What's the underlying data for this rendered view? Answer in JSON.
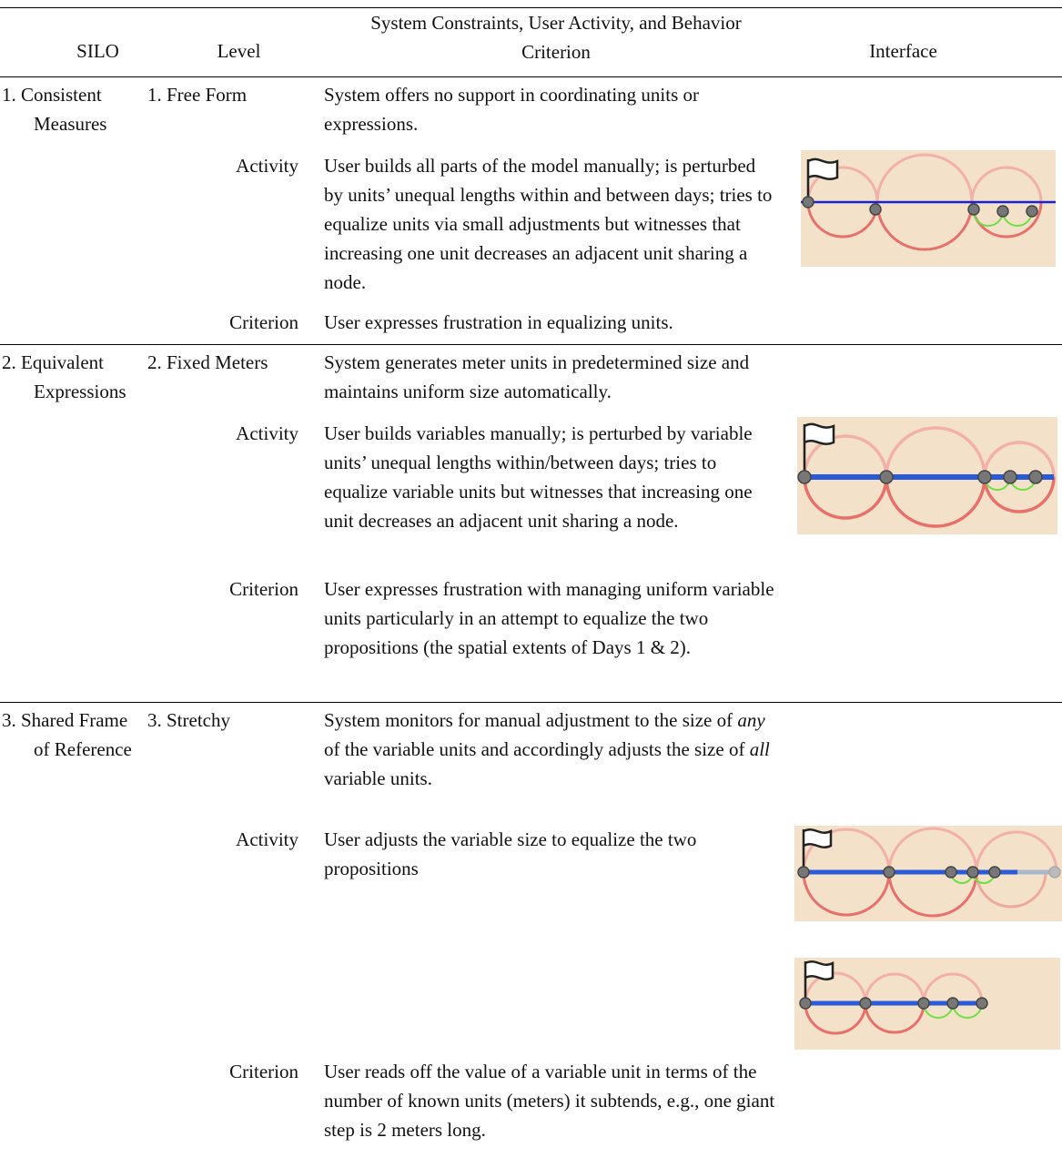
{
  "table": {
    "headers": [
      "SILO",
      "Level",
      "System Constraints, User Activity, and Behavior Criterion",
      "Interface"
    ],
    "rows": [
      {
        "silo": "1. Consistent Measures",
        "level": "1. Free Form",
        "system": "System offers no support in coordinating units or expressions.",
        "activity_label": "Activity",
        "activity": "User builds all parts of the model manually; is perturbed by units’ unequal lengths within and between days; tries to equalize units via small adjustments but witnesses that increasing one unit decreases an adjacent unit sharing a node.",
        "criterion_label": "Criterion",
        "criterion": "User expresses frustration in equalizing units."
      },
      {
        "silo": "2. Equivalent Expressions",
        "level": "2. Fixed Meters",
        "system": "System generates meter units in predetermined size and maintains uniform size automatically.",
        "activity_label": "Activity",
        "activity": "User builds variables manually; is perturbed by variable units’ unequal lengths within/between days; tries to equalize variable units but witnesses that increasing one unit decreases an adjacent unit sharing a node.",
        "criterion_label": "Criterion",
        "criterion": "User expresses frustration with managing uniform variable units particularly in an attempt to equalize the two propositions (the spatial extents of Days 1 & 2)."
      },
      {
        "silo": "3. Shared Frame of Reference",
        "level": "3. Stretchy",
        "system_parts": [
          "System monitors for manual adjustment to the size of ",
          "any",
          " of the variable units and accordingly adjusts the size of ",
          "all",
          " variable units."
        ],
        "activity_label": "Activity",
        "activity": "User adjusts the variable size to equalize the two propositions",
        "criterion_label": "Criterion",
        "criterion": "User reads off the value of a variable unit in terms of the number of known units (meters) it subtends, e.g., one giant step is 2 meters long."
      }
    ]
  }
}
